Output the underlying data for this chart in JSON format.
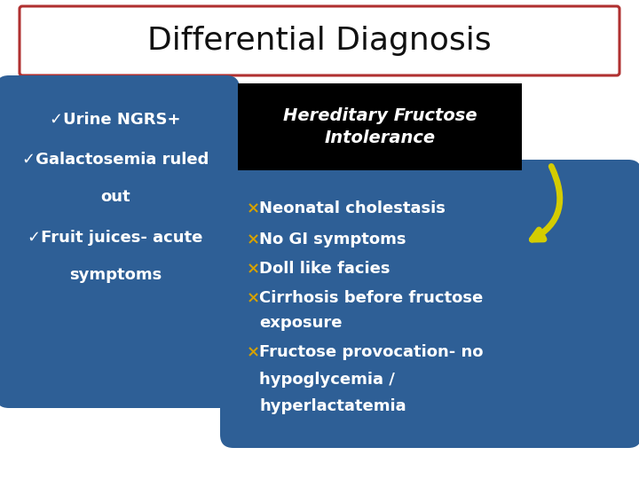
{
  "title": "Differential Diagnosis",
  "title_fontsize": 26,
  "title_color": "#111111",
  "title_border_color": "#b03030",
  "bg_color": "#ffffff",
  "left_box_color": "#2e5f96",
  "left_box_text_color": "#ffffff",
  "left_check_color": "#ffffff",
  "left_lines": [
    [
      "✓",
      "Urine NGRS+"
    ],
    [
      "✓",
      "Galactosemia ruled"
    ],
    [
      "",
      "out"
    ],
    [
      "✓",
      "Fruit juices- acute"
    ],
    [
      "",
      "symptoms"
    ]
  ],
  "top_right_bg": "#000000",
  "top_right_text": "Hereditary Fructose\nIntolerance",
  "top_right_text_color": "#ffffff",
  "bottom_right_box_color": "#2e5f96",
  "bottom_right_text_color": "#ffffff",
  "cross_color": "#d4a000",
  "bottom_right_lines": [
    [
      "×",
      "Neonatal cholestasis"
    ],
    [
      "×",
      "No GI symptoms"
    ],
    [
      "×",
      "Doll like facies"
    ],
    [
      "×",
      "Cirrhosis before fructose"
    ],
    [
      "",
      "exposure"
    ],
    [
      "×",
      "Fructose provocation- no"
    ],
    [
      "",
      "hypoglycemia /"
    ],
    [
      "",
      "hyperlactatemia"
    ]
  ],
  "arrow_color": "#d4cc00",
  "text_fontsize": 13,
  "br_text_fontsize": 13
}
